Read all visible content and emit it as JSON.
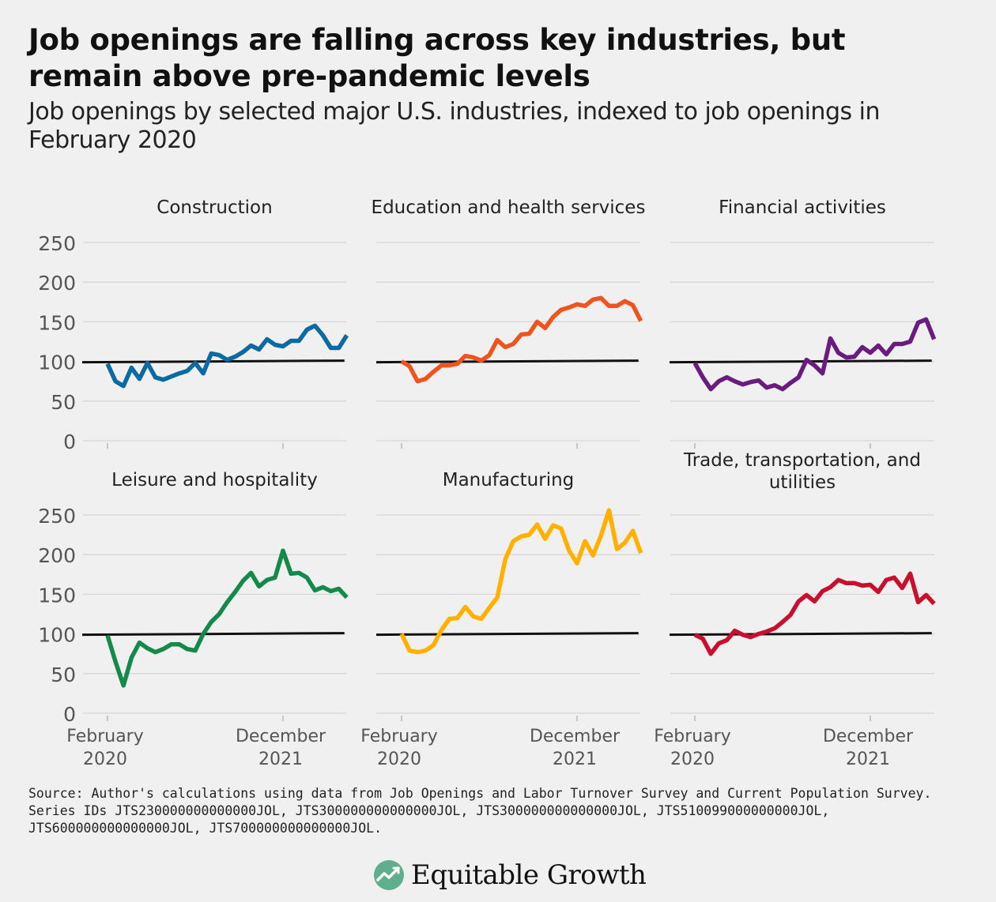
{
  "title": "Job openings are falling across key industries, but remain above pre-pandemic levels",
  "subtitle": "Job openings by selected major U.S. industries, indexed to job openings in February 2020",
  "source": "Source: Author's calculations using data from Job Openings and Labor Turnover Survey and Current Population Survey. Series IDs JTS230000000000000JOL, JTS300000000000000JOL, JTS300000000000000JOL, JTS510099000000000JOL, JTS600000000000000JOL, JTS700000000000000JOL.",
  "brand": {
    "name": "Equitable Growth",
    "icon": "equitable-growth-logo-icon"
  },
  "chart_data": {
    "type": "line",
    "layout": "small-multiples",
    "x_ticks": [
      {
        "lines": [
          "February",
          "2020"
        ],
        "index": 0
      },
      {
        "lines": [
          "December",
          "2021"
        ],
        "index": 22
      }
    ],
    "y_ticks": [
      0,
      50,
      100,
      150,
      200,
      250
    ],
    "ylim": [
      0,
      250
    ],
    "baseline": 100,
    "grid": true,
    "panels": [
      {
        "name": "Construction",
        "color": "#0a6aa1",
        "values": [
          97,
          75,
          69,
          92,
          78,
          98,
          80,
          77,
          81,
          85,
          88,
          98,
          85,
          110,
          108,
          102,
          106,
          112,
          120,
          115,
          128,
          121,
          119,
          126,
          126,
          140,
          145,
          133,
          117,
          117,
          133
        ]
      },
      {
        "name": "Education and health services",
        "color": "#f0541e",
        "values": [
          100,
          94,
          75,
          78,
          87,
          95,
          95,
          97,
          107,
          105,
          101,
          108,
          127,
          118,
          122,
          134,
          135,
          150,
          142,
          156,
          165,
          168,
          172,
          170,
          178,
          180,
          170,
          170,
          176,
          171,
          151
        ]
      },
      {
        "name": "Financial activities",
        "color": "#6a1b7f",
        "values": [
          98,
          80,
          65,
          75,
          80,
          75,
          71,
          74,
          76,
          67,
          70,
          65,
          73,
          80,
          102,
          95,
          85,
          129,
          111,
          105,
          106,
          118,
          111,
          120,
          109,
          122,
          122,
          125,
          149,
          153,
          128
        ]
      },
      {
        "name": "Leisure and hospitality",
        "color": "#138a4a",
        "values": [
          98,
          65,
          35,
          70,
          89,
          82,
          77,
          81,
          87,
          87,
          81,
          79,
          100,
          115,
          125,
          140,
          153,
          167,
          177,
          160,
          168,
          171,
          205,
          176,
          177,
          171,
          155,
          159,
          154,
          157,
          146
        ]
      },
      {
        "name": "Manufacturing",
        "color": "#ffb000",
        "values": [
          100,
          79,
          77,
          79,
          86,
          105,
          119,
          120,
          134,
          122,
          119,
          133,
          146,
          194,
          217,
          223,
          225,
          238,
          220,
          237,
          233,
          205,
          189,
          217,
          199,
          224,
          256,
          207,
          215,
          230,
          202
        ]
      },
      {
        "name": "Trade, transportation, and utilities",
        "color": "#c8102e",
        "values": [
          99,
          94,
          75,
          88,
          92,
          104,
          99,
          96,
          100,
          103,
          107,
          115,
          124,
          141,
          149,
          141,
          154,
          159,
          168,
          164,
          164,
          161,
          162,
          153,
          168,
          171,
          158,
          176,
          140,
          149,
          138
        ]
      }
    ]
  }
}
